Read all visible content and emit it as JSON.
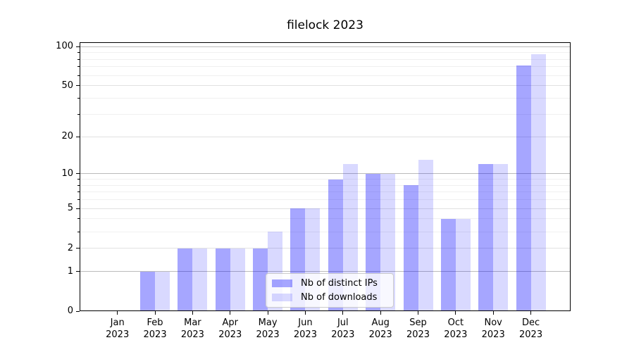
{
  "title": "filelock 2023",
  "chart_data": {
    "type": "bar",
    "title": "filelock 2023",
    "categories": [
      "Jan",
      "Feb",
      "Mar",
      "Apr",
      "May",
      "Jun",
      "Jul",
      "Aug",
      "Sep",
      "Oct",
      "Nov",
      "Dec"
    ],
    "year_label": "2023",
    "series": [
      {
        "name": "Nb of distinct IPs",
        "color": "rgba(0,0,255,0.35)",
        "values": [
          0,
          1,
          2,
          2,
          2,
          5,
          9,
          10,
          8,
          4,
          12,
          72
        ]
      },
      {
        "name": "Nb of downloads",
        "color": "rgba(0,0,255,0.15)",
        "values": [
          0,
          1,
          2,
          2,
          3,
          5,
          12,
          10,
          13,
          4,
          12,
          87
        ]
      }
    ],
    "xlabel": "",
    "ylabel": "",
    "y_scale": "log1p",
    "y_ticks": [
      0,
      1,
      2,
      5,
      10,
      20,
      50,
      100
    ],
    "y_minor_gridlines": [
      3,
      4,
      6,
      7,
      8,
      9,
      30,
      40,
      60,
      70,
      80,
      90
    ],
    "y_major_emphasis": [
      1,
      10,
      100
    ],
    "ylim": [
      0,
      108
    ],
    "grid": true,
    "legend_position": "lower center"
  },
  "colors": {
    "bar_ips_on_white": "#a5a5ff",
    "bar_downloads_on_white": "#d9d9ff",
    "grid_strong": "#bbbbbb",
    "grid_mid": "#e1e1e1",
    "grid_minor": "#f0f0f0",
    "axis": "#000000",
    "text": "#000000",
    "legend_border": "#cccccc"
  }
}
